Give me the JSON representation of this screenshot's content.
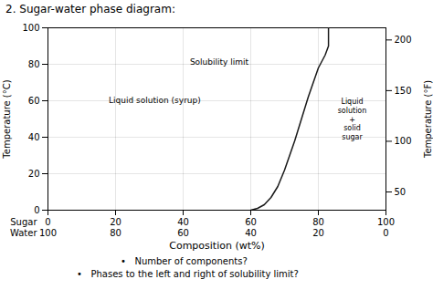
{
  "chart_data": {
    "type": "line",
    "title": "2.  Sugar-water phase diagram:",
    "xlabel": "Composition (wt%)",
    "ylabel": "Temperature (°C)",
    "y2label": "Temperature (°F)",
    "x": [
      60,
      62,
      64,
      66,
      68,
      70,
      73,
      77,
      80,
      82,
      83,
      83
    ],
    "values": [
      0,
      1,
      3,
      7,
      13,
      22,
      38,
      62,
      78,
      85,
      90,
      100
    ],
    "color": "#1a1a1a",
    "xlim": [
      0,
      100
    ],
    "xticks": [
      0,
      20,
      40,
      60,
      80,
      100
    ],
    "x_tick_rows": [
      {
        "name": "Sugar",
        "labels": [
          "0",
          "20",
          "40",
          "60",
          "80",
          "100"
        ]
      },
      {
        "name": "Water",
        "labels": [
          "100",
          "80",
          "60",
          "40",
          "20",
          "0"
        ]
      }
    ],
    "ylim": [
      0,
      100
    ],
    "yticks": [
      0,
      20,
      40,
      60,
      80,
      100
    ],
    "y2lim": [
      32,
      212
    ],
    "y2ticks": [
      50,
      100,
      150,
      200
    ],
    "grid": true,
    "annotations": [
      {
        "text": "Liquid solution (syrup)",
        "x": 18,
        "y": 60
      },
      {
        "text": "Solubility limit",
        "x": 42,
        "y": 81
      },
      {
        "text": "Liquid\nsolution\n+\nsolid\nsugar",
        "x": 90,
        "y": 50
      }
    ],
    "notes": [
      "•   Number of components?",
      "•   Phases to the left and right of solubility limit?"
    ]
  }
}
